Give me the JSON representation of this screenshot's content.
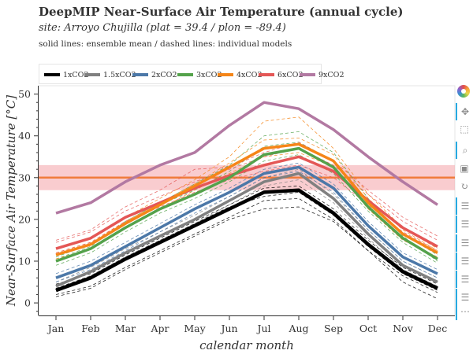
{
  "header": {
    "title": "DeepMIP Near-Surface Air Temperature (annual cycle)",
    "subtitle": "site: Arroyo Chujilla (plat = 39.4 / plon = -89.4)",
    "note": "solid lines: ensemble mean / dashed lines: individual models"
  },
  "toolbar": {
    "logo": "bokeh-logo-icon",
    "tools": [
      "pan-icon",
      "box-zoom-icon",
      "wheel-zoom-icon",
      "save-icon",
      "reset-icon",
      "hover-icon",
      "hover-icon",
      "hover-icon",
      "hover-icon",
      "hover-icon",
      "hover-icon",
      "more-icon"
    ]
  },
  "chart_data": {
    "type": "line",
    "xlabel": "calendar month",
    "ylabel": "Near-Surface Air Temperature [°C]",
    "categories": [
      "Jan",
      "Feb",
      "Mar",
      "Apr",
      "May",
      "Jun",
      "Jul",
      "Aug",
      "Sep",
      "Oct",
      "Nov",
      "Dec"
    ],
    "ylim": [
      -3,
      52
    ],
    "yticks": [
      0,
      10,
      20,
      30,
      40,
      50
    ],
    "reference_band": {
      "center": 30,
      "low": 27,
      "high": 33,
      "line_color": "#f07c3c",
      "fill_color": "#f4a3a8"
    },
    "series": [
      {
        "name": "1xCO2",
        "color": "#000000",
        "values": [
          3,
          6,
          10.5,
          14.5,
          18.5,
          22.5,
          26.5,
          27,
          21.5,
          14,
          7.5,
          3.5
        ]
      },
      {
        "name": "1.5xCO2",
        "color": "#808080",
        "values": [
          4,
          7.5,
          12,
          16,
          20,
          24.5,
          29,
          31,
          25,
          16.5,
          9,
          5
        ]
      },
      {
        "name": "2xCO2",
        "color": "#4c78a8",
        "values": [
          6,
          9,
          13.5,
          18,
          22.5,
          26.5,
          31,
          32.5,
          27.5,
          18.5,
          11,
          7
        ]
      },
      {
        "name": "3xCO2",
        "color": "#54a24b",
        "values": [
          10,
          13,
          18,
          22.5,
          26,
          30,
          35.5,
          37,
          32.5,
          23,
          15.5,
          10.5
        ]
      },
      {
        "name": "4xCO2",
        "color": "#f58518",
        "values": [
          11.5,
          14,
          19,
          23.5,
          28,
          32.5,
          37,
          38,
          34,
          24,
          16.5,
          12
        ]
      },
      {
        "name": "6xCO2",
        "color": "#e45756",
        "values": [
          13,
          15.5,
          20.5,
          24,
          27.5,
          30.5,
          33,
          35,
          31.5,
          24.5,
          18,
          13.5
        ]
      },
      {
        "name": "9xCO2",
        "color": "#b279a2",
        "values": [
          21.5,
          24,
          29,
          33,
          36,
          42.5,
          48,
          46.5,
          41.5,
          35,
          29,
          23.5
        ]
      }
    ],
    "model_lines": [
      {
        "color": "#000000",
        "values": [
          2,
          4,
          8.5,
          12.5,
          16.5,
          20.5,
          24.5,
          25,
          20,
          12.5,
          6.5,
          2.5
        ]
      },
      {
        "color": "#000000",
        "values": [
          1.5,
          3.5,
          8,
          12,
          16,
          20,
          22.5,
          23,
          19.5,
          12.5,
          5,
          1
        ]
      },
      {
        "color": "#000000",
        "values": [
          4.5,
          7,
          11.5,
          15.5,
          19.5,
          23.5,
          27.5,
          28,
          22.5,
          15,
          8.5,
          4.5
        ]
      },
      {
        "color": "#000000",
        "values": [
          3.5,
          6.5,
          11,
          15,
          19,
          23,
          25.5,
          26.5,
          21,
          13.5,
          7,
          3
        ]
      },
      {
        "color": "#808080",
        "values": [
          5,
          8.5,
          13,
          17,
          21,
          25.5,
          30,
          32,
          26,
          17.5,
          10,
          6
        ]
      },
      {
        "color": "#808080",
        "values": [
          3,
          6.5,
          11,
          15,
          19,
          23.5,
          28,
          29.5,
          24,
          15.5,
          8,
          4
        ]
      },
      {
        "color": "#4c78a8",
        "values": [
          7,
          10,
          14.5,
          19,
          23.5,
          27.5,
          32,
          33.5,
          28.5,
          19.5,
          12,
          8
        ]
      },
      {
        "color": "#4c78a8",
        "values": [
          5,
          8,
          12.5,
          17,
          21.5,
          25.5,
          30,
          31.5,
          26.5,
          17.5,
          10,
          6
        ]
      },
      {
        "color": "#54a24b",
        "values": [
          11,
          14,
          19,
          23.5,
          27,
          31.5,
          37.5,
          38.5,
          34,
          24,
          16.5,
          11.5
        ]
      },
      {
        "color": "#54a24b",
        "values": [
          9,
          12,
          17,
          21.5,
          25,
          29,
          34,
          35.5,
          31,
          22,
          14.5,
          9.5
        ]
      },
      {
        "color": "#54a24b",
        "values": [
          10.5,
          13.5,
          19.5,
          24,
          28.5,
          33,
          40,
          41,
          36,
          25,
          16,
          10
        ]
      },
      {
        "color": "#f58518",
        "values": [
          13,
          15.5,
          20.5,
          25,
          29.5,
          35,
          43.5,
          44.5,
          37,
          26,
          18,
          13
        ]
      },
      {
        "color": "#f58518",
        "values": [
          10.5,
          13,
          18,
          22.5,
          27,
          31,
          35,
          36,
          32.5,
          22.5,
          15,
          11
        ]
      },
      {
        "color": "#f58518",
        "values": [
          12,
          14.5,
          19.5,
          24,
          28.5,
          33.5,
          39,
          39.5,
          35.5,
          25,
          17.5,
          12.5
        ]
      },
      {
        "color": "#e45756",
        "values": [
          14.5,
          17,
          22,
          25.5,
          29,
          32,
          35,
          37,
          33,
          26,
          19.5,
          15
        ]
      },
      {
        "color": "#e45756",
        "values": [
          12,
          14.5,
          19.5,
          23,
          26.5,
          29.5,
          31.5,
          33,
          30,
          23.5,
          17,
          12.5
        ]
      },
      {
        "color": "#e45756",
        "values": [
          15,
          17.5,
          23,
          27,
          32,
          32.5,
          36,
          38.5,
          34,
          27,
          20.5,
          16
        ]
      }
    ]
  }
}
